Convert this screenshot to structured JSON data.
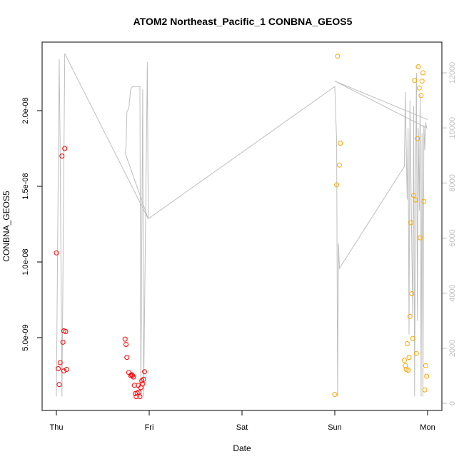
{
  "chart_data": {
    "type": "scatter",
    "title": "ATOM2 Northeast_Pacific_1 CONBNA_GEOS5",
    "xlabel": "Date",
    "ylabel": "CONBNA_GEOS5",
    "x_ticks": [
      "Thu",
      "Fri",
      "Sat",
      "Sun",
      "Mon"
    ],
    "xlim_days": [
      0,
      4
    ],
    "ylim": [
      1e-09,
      2.3e-08
    ],
    "y_ticks": [
      5e-09,
      1e-08,
      1.5e-08,
      2e-08
    ],
    "y_tick_labels": [
      "5.0e-09",
      "1.0e-08",
      "1.5e-08",
      "2.0e-08"
    ],
    "y2_ticks": [
      0,
      2000,
      4000,
      6000,
      8000,
      10000,
      12000
    ],
    "y2_tick_labels": [
      "0",
      "2000",
      "4000",
      "6000",
      "8000",
      "10000",
      "12000"
    ],
    "y2lim": [
      0,
      12000
    ],
    "grid": false,
    "series": [
      {
        "color": "#ff0000",
        "marker": "open-circle",
        "points": [
          [
            0.0,
            1.06e-08
          ],
          [
            0.02,
            2.95e-09
          ],
          [
            0.03,
            1.9e-09
          ],
          [
            0.04,
            3.35e-09
          ],
          [
            0.06,
            1.7e-08
          ],
          [
            0.07,
            4.7e-09
          ],
          [
            0.08,
            2.8e-09
          ],
          [
            0.08,
            5.45e-09
          ],
          [
            0.09,
            1.75e-08
          ],
          [
            0.1,
            5.4e-09
          ],
          [
            0.11,
            2.9e-09
          ],
          [
            0.74,
            4.9e-09
          ],
          [
            0.75,
            4.55e-09
          ],
          [
            0.76,
            3.7e-09
          ],
          [
            0.78,
            2.7e-09
          ],
          [
            0.8,
            2.5e-09
          ],
          [
            0.81,
            2.55e-09
          ],
          [
            0.82,
            2.5e-09
          ],
          [
            0.83,
            2.4e-09
          ],
          [
            0.84,
            1.85e-09
          ],
          [
            0.85,
            1.3e-09
          ],
          [
            0.86,
            1.1e-09
          ],
          [
            0.87,
            1.35e-09
          ],
          [
            0.88,
            1.85e-09
          ],
          [
            0.89,
            1.4e-09
          ],
          [
            0.9,
            1.1e-09
          ],
          [
            0.91,
            1.7e-09
          ],
          [
            0.92,
            2.15e-09
          ],
          [
            0.93,
            1.95e-09
          ],
          [
            0.94,
            2.25e-09
          ],
          [
            0.95,
            2.75e-09
          ]
        ]
      },
      {
        "color": "#ffa500",
        "marker": "open-circle",
        "points": [
          [
            3.0,
            1.25e-09
          ],
          [
            3.02,
            1.51e-08
          ],
          [
            3.03,
            2.36e-08
          ],
          [
            3.05,
            1.64e-08
          ],
          [
            3.06,
            1.785e-08
          ],
          [
            3.75,
            3.5e-09
          ],
          [
            3.76,
            3.15e-09
          ],
          [
            3.77,
            2.9e-09
          ],
          [
            3.78,
            4.6e-09
          ],
          [
            3.79,
            2.85e-09
          ],
          [
            3.8,
            3.7e-09
          ],
          [
            3.81,
            6.4e-09
          ],
          [
            3.82,
            1.26e-08
          ],
          [
            3.83,
            7.9e-09
          ],
          [
            3.84,
            4.95e-09
          ],
          [
            3.85,
            1.44e-08
          ],
          [
            3.86,
            2.2e-08
          ],
          [
            3.87,
            1.41e-08
          ],
          [
            3.88,
            3.95e-09
          ],
          [
            3.89,
            1.815e-08
          ],
          [
            3.9,
            2.29e-08
          ],
          [
            3.91,
            2.15e-08
          ],
          [
            3.92,
            1.16e-08
          ],
          [
            3.93,
            2.1e-08
          ],
          [
            3.94,
            2.195e-08
          ],
          [
            3.95,
            2.25e-08
          ],
          [
            3.96,
            1.4e-08
          ],
          [
            3.97,
            1.55e-09
          ],
          [
            3.98,
            3.15e-09
          ],
          [
            3.99,
            2.45e-09
          ]
        ]
      },
      {
        "color": "#bebebe",
        "type": "line",
        "axis": "right",
        "points": [
          [
            0.0,
            250
          ],
          [
            0.03,
            12500
          ],
          [
            0.04,
            9500
          ],
          [
            0.06,
            250
          ],
          [
            0.09,
            12700
          ],
          [
            0.99,
            6700
          ],
          [
            0.74,
            9100
          ],
          [
            0.75,
            9300
          ],
          [
            0.76,
            10600
          ],
          [
            0.78,
            10700
          ],
          [
            0.8,
            11400
          ],
          [
            0.82,
            11500
          ],
          [
            0.9,
            11500
          ],
          [
            0.91,
            250
          ],
          [
            0.93,
            11400
          ],
          [
            0.94,
            250
          ],
          [
            0.98,
            12400
          ],
          [
            0.99,
            6700
          ],
          [
            3.0,
            11500
          ],
          [
            3.02,
            9500
          ],
          [
            3.03,
            250
          ],
          [
            3.04,
            5800
          ],
          [
            3.05,
            4900
          ],
          [
            3.75,
            8600
          ],
          [
            3.76,
            11300
          ],
          [
            3.77,
            9200
          ],
          [
            3.78,
            7400
          ],
          [
            3.79,
            10000
          ],
          [
            3.8,
            2500
          ],
          [
            3.81,
            11000
          ],
          [
            3.82,
            8200
          ],
          [
            3.83,
            5600
          ],
          [
            3.84,
            3200
          ],
          [
            3.85,
            10800
          ],
          [
            3.86,
            250
          ],
          [
            3.87,
            8000
          ],
          [
            3.88,
            12000
          ],
          [
            3.89,
            3000
          ],
          [
            3.9,
            10000
          ],
          [
            3.91,
            7000
          ],
          [
            3.92,
            11200
          ],
          [
            3.93,
            250
          ],
          [
            3.94,
            9800
          ],
          [
            3.95,
            250
          ],
          [
            3.96,
            10100
          ],
          [
            3.97,
            9200
          ],
          [
            3.98,
            10200
          ],
          [
            3.99,
            10000
          ],
          [
            3.0,
            11700
          ],
          [
            4.0,
            10300
          ]
        ]
      }
    ]
  }
}
